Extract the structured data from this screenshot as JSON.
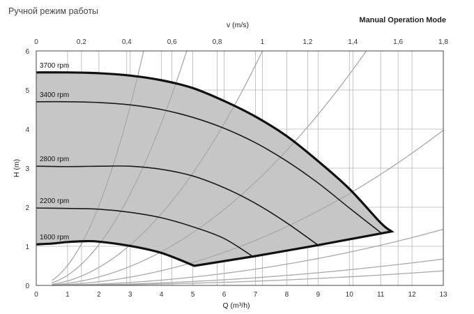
{
  "header": {
    "title_ru": "Ручной режим работы",
    "title_en": "Manual Operation Mode"
  },
  "chart_data": {
    "type": "line",
    "xlabel": "Q (m³/h)",
    "ylabel": "H (m)",
    "x2label": "v (m/s)",
    "xlim": [
      0,
      13
    ],
    "ylim": [
      0,
      6
    ],
    "x2lim": [
      0,
      1.8
    ],
    "x_ticks": [
      "0",
      "1",
      "2",
      "3",
      "4",
      "5",
      "6",
      "7",
      "8",
      "9",
      "10",
      "11",
      "12",
      "13"
    ],
    "y_ticks": [
      "0",
      "1",
      "2",
      "3",
      "4",
      "5",
      "6"
    ],
    "x2_ticks": [
      "0",
      "0,2",
      "0,4",
      "0,6",
      "0,8",
      "1",
      "1,2",
      "1,4",
      "1,6",
      "1,8"
    ],
    "grid": true,
    "colors": {
      "envelope_fill": "#c6c6c7",
      "pump_curve": "#1a1a1a",
      "system_curve": "#a9a9a9",
      "grid": "#b5b5b5"
    },
    "series": [
      {
        "name": "3700 rpm",
        "x": [
          0,
          1,
          2,
          3,
          4,
          5,
          6,
          7,
          8,
          9,
          10,
          11,
          11.35
        ],
        "y": [
          5.45,
          5.45,
          5.43,
          5.37,
          5.25,
          5.05,
          4.72,
          4.32,
          3.82,
          3.18,
          2.47,
          1.6,
          1.38
        ]
      },
      {
        "name": "3400 rpm",
        "x": [
          0,
          1,
          2,
          3,
          4,
          5,
          6,
          7,
          8,
          9,
          10,
          11
        ],
        "y": [
          4.7,
          4.7,
          4.68,
          4.62,
          4.5,
          4.3,
          4.02,
          3.65,
          3.18,
          2.62,
          1.98,
          1.35
        ]
      },
      {
        "name": "2800 rpm",
        "x": [
          0,
          1,
          2,
          3,
          4,
          5,
          6,
          7,
          8,
          9
        ],
        "y": [
          3.05,
          3.04,
          3.05,
          3.05,
          2.97,
          2.8,
          2.5,
          2.1,
          1.6,
          1.03
        ]
      },
      {
        "name": "2200 rpm",
        "x": [
          0,
          1,
          2,
          3,
          4,
          5,
          6,
          6.95
        ],
        "y": [
          1.98,
          1.97,
          1.95,
          1.87,
          1.73,
          1.5,
          1.2,
          0.72
        ]
      },
      {
        "name": "1600 rpm",
        "x": [
          0,
          0.5,
          1,
          1.5,
          2,
          3,
          4,
          5.05
        ],
        "y": [
          1.05,
          1.07,
          1.11,
          1.13,
          1.12,
          1.01,
          0.83,
          0.5
        ]
      }
    ],
    "envelope_bottom": {
      "x": [
        5.05,
        7,
        9,
        11.35
      ],
      "y": [
        0.5,
        0.75,
        1.03,
        1.38
      ]
    },
    "system_curves": [
      {
        "k": 0.51,
        "x0": 0.5,
        "xmax": 4.0
      },
      {
        "k": 0.26,
        "x0": 0.5,
        "xmax": 5.1
      },
      {
        "k": 0.115,
        "x0": 0.5,
        "xmax": 7.7
      },
      {
        "k": 0.054,
        "x0": 0.5,
        "xmax": 11.35
      },
      {
        "k": 0.0235,
        "x0": 0.5,
        "xmax": 13
      },
      {
        "k": 0.0085,
        "x0": 0.5,
        "xmax": 13
      },
      {
        "k": 0.004,
        "x0": 0.5,
        "xmax": 13
      },
      {
        "k": 0.0022,
        "x0": 0.5,
        "xmax": 13
      }
    ]
  }
}
